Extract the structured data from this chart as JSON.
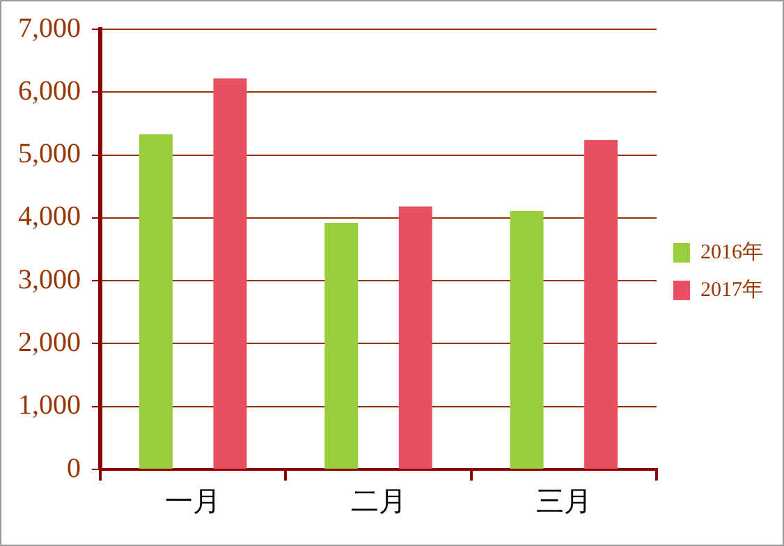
{
  "chart_data": {
    "type": "bar",
    "categories": [
      "一月",
      "二月",
      "三月"
    ],
    "series": [
      {
        "name": "2016年",
        "color": "#9acd3c",
        "values": [
          5330,
          3920,
          4110
        ]
      },
      {
        "name": "2017年",
        "color": "#e8505f",
        "values": [
          6220,
          4180,
          5240
        ]
      }
    ],
    "ylim": [
      0,
      7000
    ],
    "yticks": [
      0,
      {
        "value": 1000,
        "label": "1,000"
      },
      {
        "value": 2000,
        "label": "2,000"
      },
      {
        "value": 3000,
        "label": "3,000"
      },
      {
        "value": 4000,
        "label": "4,000"
      },
      {
        "value": 5000,
        "label": "5,000"
      },
      {
        "value": 6000,
        "label": "6,000"
      },
      {
        "value": 7000,
        "label": "7,000"
      }
    ],
    "grid": "y",
    "legend": "right"
  }
}
